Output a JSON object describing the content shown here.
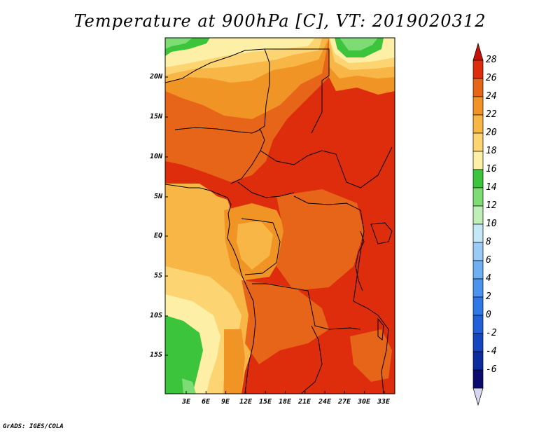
{
  "title": "Temperature at 900hPa [C], VT: 2019020312",
  "credit": "GrADS: IGES/COLA",
  "map": {
    "region": "Central Africa",
    "variable": "Temperature",
    "level": "900hPa",
    "units": "C",
    "valid_time": "2019020312",
    "lon_labels": [
      "3E",
      "6E",
      "9E",
      "12E",
      "15E",
      "18E",
      "21E",
      "24E",
      "27E",
      "30E",
      "33E"
    ],
    "lat_labels": [
      "20N",
      "15N",
      "10N",
      "5N",
      "EQ",
      "5S",
      "10S",
      "15S"
    ]
  },
  "colorbar": {
    "levels": [
      "28",
      "26",
      "24",
      "22",
      "20",
      "18",
      "16",
      "14",
      "12",
      "10",
      "8",
      "6",
      "4",
      "2",
      "0",
      "-2",
      "-4",
      "-6"
    ],
    "colors": {
      "c_m6": "#0b0b6e",
      "c_m4": "#0c2b9c",
      "c_m2": "#1546bf",
      "c_0": "#2160d8",
      "c_2": "#2f78e6",
      "c_4": "#4b93ee",
      "c_6": "#6fb0f2",
      "c_8": "#98cbf6",
      "c_10": "#c4e8f8",
      "c_12": "#bfeeb7",
      "c_14": "#7ddc74",
      "c_16": "#3cc43c",
      "c_18": "#fdf0a6",
      "c_20": "#fcd472",
      "c_22": "#f8b646",
      "c_24": "#f19426",
      "c_26": "#e76518",
      "c_28": "#dd2d0c",
      "c_above": "#c4120a",
      "c_below": "#d6d6ee"
    }
  }
}
